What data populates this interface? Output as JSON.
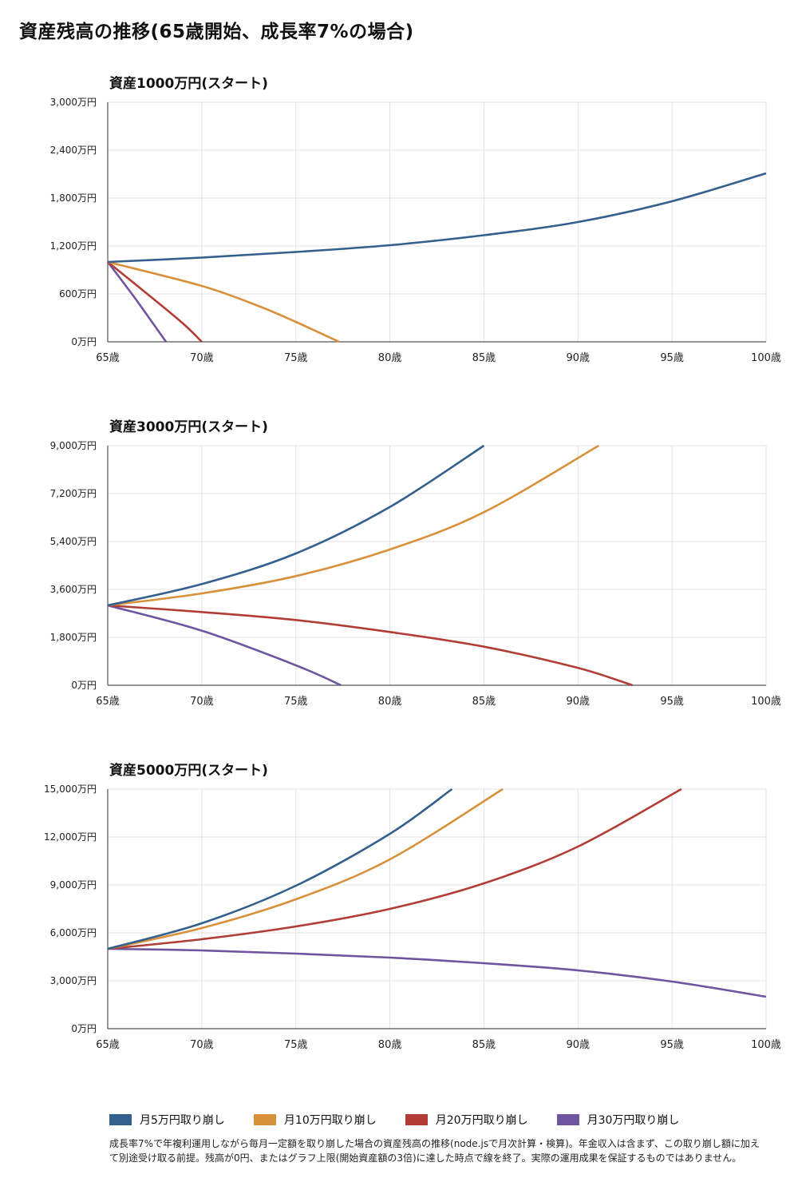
{
  "title": "資産残高の推移(65歳開始、成長率7%の場合)",
  "colors": {
    "series": [
      "#33608c",
      "#d8913a",
      "#b23d36",
      "#6f54a0"
    ],
    "grid": "#e3e3e3",
    "axis": "#555555"
  },
  "legend": [
    {
      "label": "月5万円取り崩し"
    },
    {
      "label": "月10万円取り崩し"
    },
    {
      "label": "月20万円取り崩し"
    },
    {
      "label": "月30万円取り崩し"
    }
  ],
  "note": "成長率7%で年複利運用しながら毎月一定額を取り崩した場合の資産残高の推移(node.jsで月次計算・検算)。年金収入は含まず、この取り崩し額に加えて別途受け取る前提。残高が0円、またはグラフ上限(開始資産額の3倍)に達した時点で線を終了。実際の運用成果を保証するものではありません。",
  "chart_data": [
    {
      "type": "line",
      "title": "資産1000万円(スタート)",
      "xlim": [
        65,
        100
      ],
      "xticks": [
        65,
        70,
        75,
        80,
        85,
        90,
        95,
        100
      ],
      "xtick_labels": [
        "65歳",
        "70歳",
        "75歳",
        "80歳",
        "85歳",
        "90歳",
        "95歳",
        "100歳"
      ],
      "ylim": [
        0,
        3000
      ],
      "yticks": [
        0,
        600,
        1200,
        1800,
        2400,
        3000
      ],
      "ytick_labels": [
        "0万円",
        "600万円",
        "1,200万円",
        "1,800万円",
        "2,400万円",
        "3,000万円"
      ],
      "series": [
        {
          "name": "月5万円取り崩し",
          "x": [
            65,
            70,
            75,
            80,
            85,
            90,
            95,
            100
          ],
          "y": [
            1000,
            1055,
            1125,
            1210,
            1335,
            1500,
            1760,
            2110
          ]
        },
        {
          "name": "月10万円取り崩し",
          "x": [
            65,
            70,
            73,
            75,
            77.3
          ],
          "y": [
            1000,
            700,
            450,
            250,
            0
          ]
        },
        {
          "name": "月20万円取り崩し",
          "x": [
            65,
            67,
            69,
            70
          ],
          "y": [
            1000,
            620,
            230,
            0
          ]
        },
        {
          "name": "月30万円取り崩し",
          "x": [
            65,
            66.5,
            68.1
          ],
          "y": [
            1000,
            530,
            0
          ]
        }
      ]
    },
    {
      "type": "line",
      "title": "資産3000万円(スタート)",
      "xlim": [
        65,
        100
      ],
      "xticks": [
        65,
        70,
        75,
        80,
        85,
        90,
        95,
        100
      ],
      "xtick_labels": [
        "65歳",
        "70歳",
        "75歳",
        "80歳",
        "85歳",
        "90歳",
        "95歳",
        "100歳"
      ],
      "ylim": [
        0,
        9000
      ],
      "yticks": [
        0,
        1800,
        3600,
        5400,
        7200,
        9000
      ],
      "ytick_labels": [
        "0万円",
        "1,800万円",
        "3,600万円",
        "5,400万円",
        "7,200万円",
        "9,000万円"
      ],
      "series": [
        {
          "name": "月5万円取り崩し",
          "x": [
            65,
            70,
            75,
            80,
            85
          ],
          "y": [
            3000,
            3800,
            4950,
            6700,
            9000
          ]
        },
        {
          "name": "月10万円取り崩し",
          "x": [
            65,
            70,
            75,
            80,
            85,
            91.1
          ],
          "y": [
            3000,
            3450,
            4100,
            5100,
            6500,
            9000
          ]
        },
        {
          "name": "月20万円取り崩し",
          "x": [
            65,
            70,
            75,
            80,
            85,
            90,
            92.9
          ],
          "y": [
            3000,
            2750,
            2450,
            2000,
            1450,
            650,
            0
          ]
        },
        {
          "name": "月30万円取り崩し",
          "x": [
            65,
            70,
            75,
            77.4
          ],
          "y": [
            3000,
            2050,
            750,
            0
          ]
        }
      ]
    },
    {
      "type": "line",
      "title": "資産5000万円(スタート)",
      "xlim": [
        65,
        100
      ],
      "xticks": [
        65,
        70,
        75,
        80,
        85,
        90,
        95,
        100
      ],
      "xtick_labels": [
        "65歳",
        "70歳",
        "75歳",
        "80歳",
        "85歳",
        "90歳",
        "95歳",
        "100歳"
      ],
      "ylim": [
        0,
        15000
      ],
      "yticks": [
        0,
        3000,
        6000,
        9000,
        12000,
        15000
      ],
      "ytick_labels": [
        "0万円",
        "3,000万円",
        "6,000万円",
        "9,000万円",
        "12,000万円",
        "15,000万円"
      ],
      "series": [
        {
          "name": "月5万円取り崩し",
          "x": [
            65,
            70,
            75,
            80,
            83.3
          ],
          "y": [
            5000,
            6600,
            8950,
            12200,
            15000
          ]
        },
        {
          "name": "月10万円取り崩し",
          "x": [
            65,
            70,
            75,
            80,
            86
          ],
          "y": [
            5000,
            6300,
            8100,
            10600,
            15000
          ]
        },
        {
          "name": "月20万円取り崩し",
          "x": [
            65,
            70,
            75,
            80,
            85,
            90,
            95.5
          ],
          "y": [
            5000,
            5600,
            6400,
            7500,
            9100,
            11400,
            15000
          ]
        },
        {
          "name": "月30万円取り崩し",
          "x": [
            65,
            70,
            75,
            80,
            85,
            90,
            95,
            100
          ],
          "y": [
            5000,
            4900,
            4700,
            4450,
            4100,
            3650,
            2950,
            2000
          ]
        }
      ]
    }
  ]
}
